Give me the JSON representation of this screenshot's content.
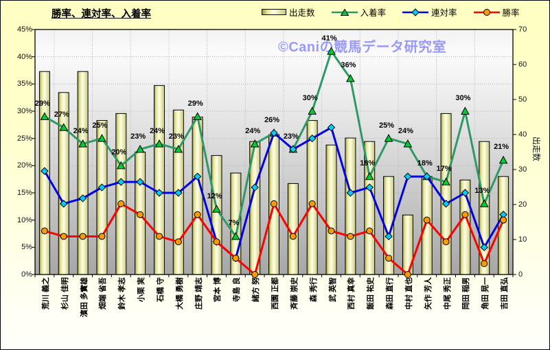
{
  "title": "勝率、連対率、入着率",
  "watermark": {
    "text": "©Caniの競馬データ研究室",
    "color": "#9999FF"
  },
  "legend": {
    "items": [
      {
        "label": "出走数",
        "marker": "bar"
      },
      {
        "label": "入着率",
        "marker": "triangle"
      },
      {
        "label": "連対率",
        "marker": "diamond"
      },
      {
        "label": "勝率",
        "marker": "circle"
      }
    ]
  },
  "colors": {
    "bar_dark": "#9A9A52",
    "bar_light": "#FFFFE6",
    "plot_gray_bottom": "#A6A6A6",
    "background_yellow": "#FFFFC3",
    "grid": "#B0B0B0"
  },
  "chart_data": {
    "type": "bar+line combo",
    "title": "勝率、連対率、入着率",
    "grid": true,
    "legend_position": "top-right",
    "categories": [
      "荒川 義之",
      "杉山 佳明",
      "濱田 多實雄",
      "畑端 省吾",
      "鈴木 孝志",
      "小栗 実",
      "石橋 守",
      "大橋 勇樹",
      "庄野 靖志",
      "宮本 博",
      "寺島 良",
      "緒方 努",
      "西園 正都",
      "斉藤 崇史",
      "森 秀行",
      "武 英智",
      "西村 真幸",
      "飯田 祐史",
      "森田 直行",
      "中村 直也",
      "矢作 芳人",
      "中尾 秀正",
      "岡田 稲男",
      "角田 晃一",
      "吉田 直弘"
    ],
    "left_axis": {
      "min": 0,
      "max": 45,
      "step": 5,
      "format": "percent",
      "tick_labels": [
        "45%",
        "40%",
        "35%",
        "30%",
        "25%",
        "20%",
        "15%",
        "10%",
        "5%",
        "0%"
      ]
    },
    "right_axis": {
      "min": 0,
      "max": 70,
      "step": 10,
      "title": "出走数",
      "tick_labels": [
        "70",
        "60",
        "50",
        "40",
        "30",
        "20",
        "10",
        "0"
      ]
    },
    "series": [
      {
        "name": "出走数",
        "type": "bar",
        "axis": "right",
        "values": [
          58,
          52,
          58,
          44,
          46,
          35,
          54,
          47,
          45,
          34,
          29,
          38,
          40,
          26,
          44,
          37,
          39,
          38,
          28,
          17,
          28,
          46,
          27,
          38,
          28
        ]
      },
      {
        "name": "入着率",
        "type": "line",
        "axis": "left",
        "marker": "triangle",
        "line_color": "#2E9966",
        "marker_color": "#00CC33",
        "data_labels": true,
        "values": [
          29,
          27,
          24,
          25,
          20,
          23,
          24,
          23,
          29,
          12,
          7,
          24,
          26,
          23,
          30,
          41,
          36,
          18,
          25,
          24,
          18,
          17,
          30,
          13,
          21
        ]
      },
      {
        "name": "連対率",
        "type": "line",
        "axis": "left",
        "marker": "diamond",
        "line_color": "#0000E6",
        "marker_color": "#00CCFF",
        "data_labels": false,
        "values": [
          19,
          13,
          14,
          16,
          17,
          17,
          15,
          15,
          18,
          6,
          3,
          16,
          26,
          23,
          25,
          27,
          15,
          16,
          7,
          18,
          18,
          13,
          15,
          5,
          11
        ]
      },
      {
        "name": "勝率",
        "type": "line",
        "axis": "left",
        "marker": "circle",
        "line_color": "#FF0000",
        "marker_color": "#FF9900",
        "data_labels": false,
        "values": [
          8,
          7,
          7,
          7,
          13,
          11,
          7,
          6,
          11,
          6,
          3,
          0,
          13,
          7,
          13,
          8,
          7,
          8,
          3,
          0,
          10,
          6,
          11,
          2,
          10
        ]
      }
    ]
  }
}
